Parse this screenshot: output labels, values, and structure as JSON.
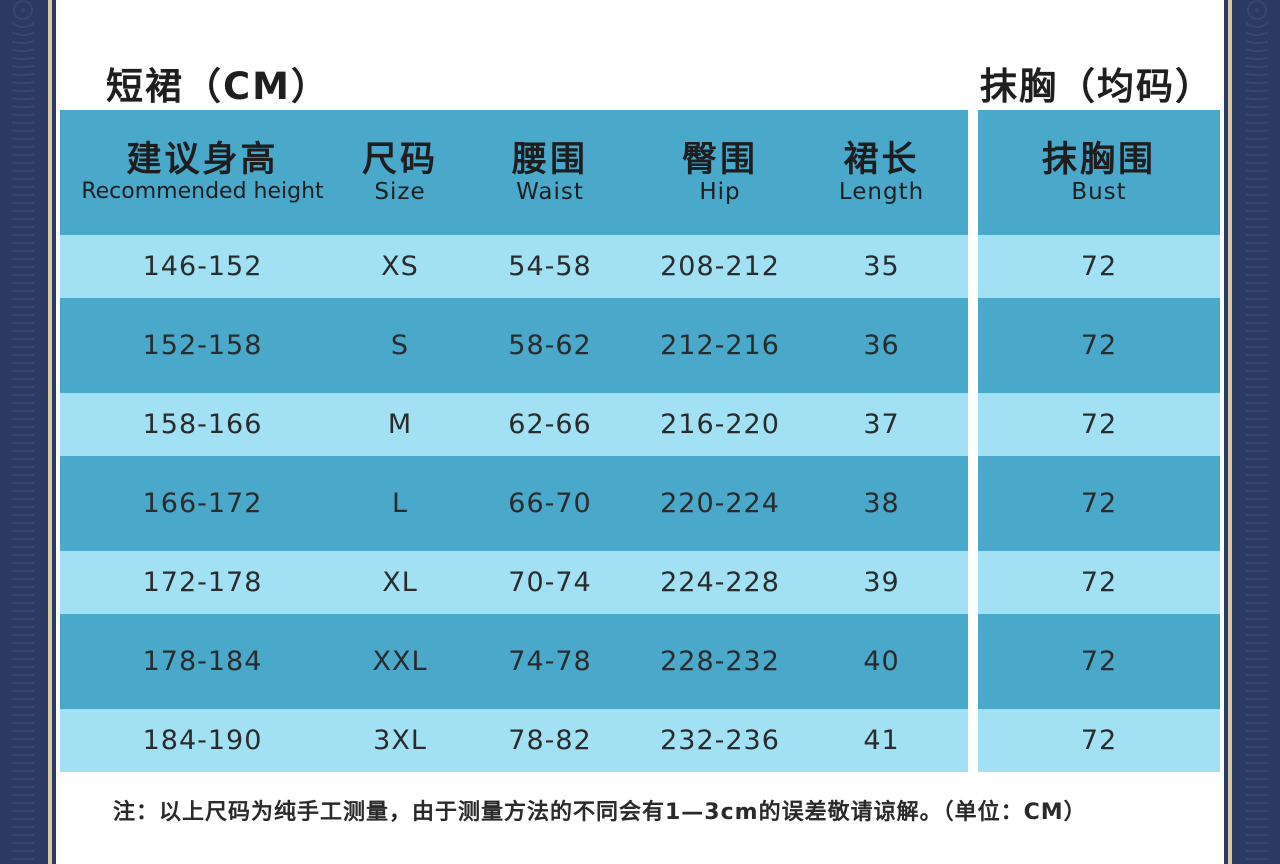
{
  "skirt_title": "短裙（CM）",
  "bust_title": "抹胸（均码）",
  "skirt_headers": [
    {
      "zh": "建议身高",
      "en": "Recommended height"
    },
    {
      "zh": "尺码",
      "en": "Size"
    },
    {
      "zh": "腰围",
      "en": "Waist"
    },
    {
      "zh": "臀围",
      "en": "Hip"
    },
    {
      "zh": "裙长",
      "en": "Length"
    }
  ],
  "bust_header": {
    "zh": "抹胸围",
    "en": "Bust"
  },
  "rows": [
    [
      "146-152",
      "XS",
      "54-58",
      "208-212",
      "35",
      "72"
    ],
    [
      "152-158",
      "S",
      "58-62",
      "212-216",
      "36",
      "72"
    ],
    [
      "158-166",
      "M",
      "62-66",
      "216-220",
      "37",
      "72"
    ],
    [
      "166-172",
      "L",
      "66-70",
      "220-224",
      "38",
      "72"
    ],
    [
      "172-178",
      "XL",
      "70-74",
      "224-228",
      "39",
      "72"
    ],
    [
      "178-184",
      "XXL",
      "74-78",
      "228-232",
      "40",
      "72"
    ],
    [
      "184-190",
      "3XL",
      "78-82",
      "232-236",
      "41",
      "72"
    ]
  ],
  "note": "注：以上尺码为纯手工测量，由于测量方法的不同会有1—3cm的误差敬请谅解。（单位：CM）",
  "colors": {
    "frame": "#2b3a63",
    "gold_stripe": "#d9c9a3",
    "header_fill": "#4aa8cb",
    "light_row": "#a2e1f4",
    "dark_row": "#4aa8cb"
  }
}
